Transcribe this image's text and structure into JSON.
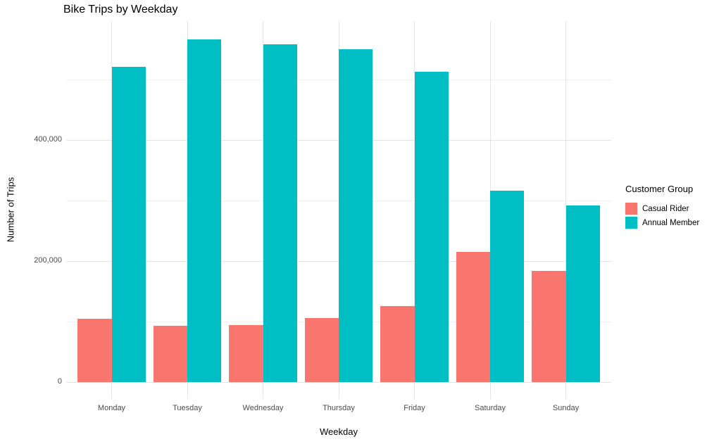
{
  "chart_data": {
    "type": "bar",
    "bar_grouping": "dodge",
    "title": "Bike Trips by Weekday",
    "xlabel": "Weekday",
    "ylabel": "Number of Trips",
    "categories": [
      "Monday",
      "Tuesday",
      "Wednesday",
      "Thursday",
      "Friday",
      "Saturday",
      "Sunday"
    ],
    "series": [
      {
        "name": "Casual Rider",
        "color": "#F8766D",
        "values": [
          105000,
          93000,
          94000,
          106000,
          125000,
          215000,
          184000
        ]
      },
      {
        "name": "Annual Member",
        "color": "#00BFC4",
        "values": [
          520000,
          566000,
          558000,
          549000,
          512000,
          316000,
          292000
        ]
      }
    ],
    "legend_title": "Customer Group",
    "legend_position": "right",
    "grid": true,
    "y_axis": {
      "ylim": [
        -28000,
        596000
      ],
      "major_ticks": [
        0,
        200000,
        400000
      ],
      "tick_labels": [
        "0",
        "200,000",
        "400,000"
      ],
      "minor_ticks": [
        100000,
        300000,
        500000
      ]
    }
  },
  "colors": {
    "background": "#FFFFFF",
    "grid_major": "#E4E4E4",
    "grid_minor": "#F1F1F1",
    "tick_text": "#4D4D4D",
    "title_text": "#000000"
  }
}
